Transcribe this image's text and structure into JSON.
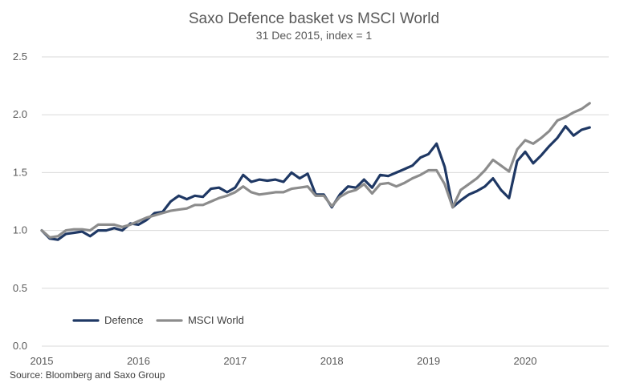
{
  "chart_data": {
    "type": "line",
    "title": "Saxo Defence basket vs MSCI World",
    "subtitle": "31 Dec 2015, index = 1",
    "source": "Source: Bloomberg and Saxo Group",
    "xlabel": "",
    "ylabel": "",
    "x_ticks": [
      "2015",
      "2016",
      "2017",
      "2018",
      "2019",
      "2020"
    ],
    "y_ticks": [
      "0.0",
      "0.5",
      "1.0",
      "1.5",
      "2.0",
      "2.5"
    ],
    "ylim": [
      0,
      2.5
    ],
    "xlim": [
      "2015-01",
      "2020-09"
    ],
    "grid": "horizontal",
    "legend_position": "bottom-left",
    "x": [
      "2015-01",
      "2015-02",
      "2015-03",
      "2015-04",
      "2015-05",
      "2015-06",
      "2015-07",
      "2015-08",
      "2015-09",
      "2015-10",
      "2015-11",
      "2015-12",
      "2016-01",
      "2016-02",
      "2016-03",
      "2016-04",
      "2016-05",
      "2016-06",
      "2016-07",
      "2016-08",
      "2016-09",
      "2016-10",
      "2016-11",
      "2016-12",
      "2017-01",
      "2017-02",
      "2017-03",
      "2017-04",
      "2017-05",
      "2017-06",
      "2017-07",
      "2017-08",
      "2017-09",
      "2017-10",
      "2017-11",
      "2017-12",
      "2018-01",
      "2018-02",
      "2018-03",
      "2018-04",
      "2018-05",
      "2018-06",
      "2018-07",
      "2018-08",
      "2018-09",
      "2018-10",
      "2018-11",
      "2018-12",
      "2019-01",
      "2019-02",
      "2019-03",
      "2019-04",
      "2019-05",
      "2019-06",
      "2019-07",
      "2019-08",
      "2019-09",
      "2019-10",
      "2019-11",
      "2019-12",
      "2020-01",
      "2020-02",
      "2020-03",
      "2020-04",
      "2020-05",
      "2020-06",
      "2020-07",
      "2020-08",
      "2020-09"
    ],
    "series": [
      {
        "name": "Defence",
        "color": "#1f3864",
        "values": [
          1.0,
          0.93,
          0.92,
          0.97,
          0.98,
          0.99,
          0.95,
          1.0,
          1.0,
          1.02,
          1.0,
          1.06,
          1.05,
          1.09,
          1.15,
          1.16,
          1.25,
          1.3,
          1.27,
          1.3,
          1.29,
          1.36,
          1.37,
          1.33,
          1.37,
          1.48,
          1.42,
          1.44,
          1.43,
          1.44,
          1.42,
          1.5,
          1.45,
          1.49,
          1.31,
          1.31,
          1.2,
          1.31,
          1.38,
          1.37,
          1.44,
          1.37,
          1.48,
          1.47,
          1.5,
          1.53,
          1.56,
          1.63,
          1.66,
          1.75,
          1.55,
          1.2,
          1.26,
          1.31,
          1.34,
          1.38,
          1.45,
          1.35,
          1.28,
          1.6,
          1.68,
          1.58,
          1.65,
          1.73,
          1.8,
          1.9,
          1.82,
          1.87,
          1.89
        ]
      },
      {
        "name": "MSCI World",
        "color": "#8c8c8c",
        "values": [
          1.0,
          0.94,
          0.95,
          1.0,
          1.01,
          1.01,
          1.0,
          1.05,
          1.05,
          1.05,
          1.03,
          1.05,
          1.08,
          1.11,
          1.13,
          1.15,
          1.17,
          1.18,
          1.19,
          1.22,
          1.22,
          1.25,
          1.28,
          1.3,
          1.33,
          1.38,
          1.33,
          1.31,
          1.32,
          1.33,
          1.33,
          1.36,
          1.37,
          1.38,
          1.3,
          1.3,
          1.21,
          1.29,
          1.33,
          1.35,
          1.4,
          1.32,
          1.4,
          1.41,
          1.38,
          1.41,
          1.45,
          1.48,
          1.52,
          1.52,
          1.4,
          1.2,
          1.35,
          1.4,
          1.45,
          1.52,
          1.61,
          1.56,
          1.51,
          1.7,
          1.78,
          1.75,
          1.8,
          1.86,
          1.95,
          1.98,
          2.02,
          2.05,
          2.1
        ]
      }
    ]
  }
}
